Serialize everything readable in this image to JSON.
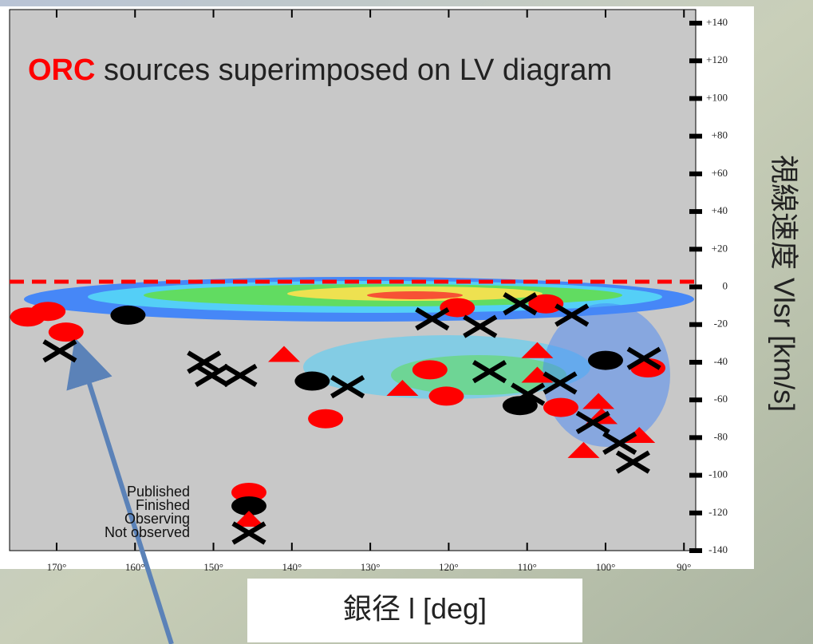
{
  "chart_data": {
    "type": "scatter",
    "title_highlight": "ORC",
    "title": "sources superimposed on LV diagram",
    "x_label": "銀径 l [deg]",
    "y_label": "視線速度 Vlsr [km/s]",
    "xlim": [
      176,
      88.5
    ],
    "xticks": [
      {
        "value": 170,
        "label": "170°"
      },
      {
        "value": 160,
        "label": "160°"
      },
      {
        "value": 150,
        "label": "150°"
      },
      {
        "value": 140,
        "label": "140°"
      },
      {
        "value": 130,
        "label": "130°"
      },
      {
        "value": 120,
        "label": "120°"
      },
      {
        "value": 110,
        "label": "110°"
      },
      {
        "value": 100,
        "label": "100°"
      },
      {
        "value": 90,
        "label": "90°"
      }
    ],
    "ylim": [
      -140,
      140
    ],
    "yticks": [
      {
        "value": 140,
        "label": "+140"
      },
      {
        "value": 120,
        "label": "+120"
      },
      {
        "value": 100,
        "label": "+100"
      },
      {
        "value": 80,
        "label": "+80"
      },
      {
        "value": 60,
        "label": "+60"
      },
      {
        "value": 40,
        "label": "+40"
      },
      {
        "value": 20,
        "label": "+20"
      },
      0,
      -20,
      -40,
      -60,
      -80,
      -100,
      -120,
      -140
    ],
    "series": [
      {
        "name": "Published",
        "color": "#ff0000",
        "marker": "ellipse",
        "x": [
          173.7,
          171.1,
          168.8,
          122.4,
          118.9,
          120.3,
          135.7,
          107.6,
          105.7,
          94.6
        ],
        "values": [
          -16,
          -13,
          -24,
          -44,
          -11,
          -58,
          -70,
          -9,
          -64,
          -43
        ]
      },
      {
        "name": "Finished",
        "color": "#000000",
        "marker": "ellipse",
        "x": [
          160.9,
          137.4,
          100,
          110.9
        ],
        "values": [
          -15,
          -50,
          -39,
          -63
        ]
      },
      {
        "name": "Observing",
        "color": "#ff0000",
        "marker": "triangle",
        "x": [
          141,
          125.9,
          108.7,
          108.7,
          100.9,
          100.5,
          95.7,
          102.8
        ],
        "values": [
          -36,
          -54,
          -34,
          -47,
          -61,
          -69,
          -79,
          -87
        ]
      },
      {
        "name": "Not observed",
        "color": "#000000",
        "marker": "cross",
        "x": [
          169.6,
          151.2,
          150.2,
          146.6,
          132.9,
          122.1,
          116,
          114.8,
          110.9,
          104.3,
          109.9,
          105.8,
          95.1,
          101.6,
          98.2,
          96.5
        ],
        "values": [
          -34,
          -40,
          -47,
          -47,
          -53,
          -17,
          -21,
          -45,
          -9,
          -15,
          -57,
          -51,
          -38,
          -72,
          -83,
          -93
        ]
      }
    ]
  }
}
